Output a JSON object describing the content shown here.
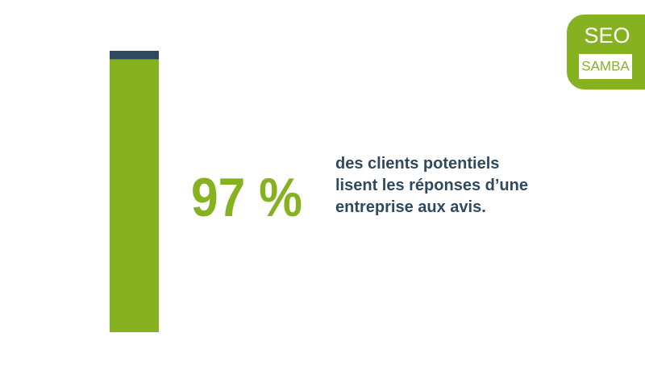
{
  "chart_data": {
    "type": "stacked-bar",
    "values": [
      97,
      3
    ],
    "value_labels": [
      "97 %",
      null
    ],
    "colors": [
      "#86b221",
      "#2f4a5e"
    ],
    "ylim": [
      0,
      100
    ],
    "description": "des clients potentiels lisent les réponses d’une entreprise aux avis."
  },
  "logo": {
    "line1": "SEO",
    "line2": "SAMBA"
  }
}
